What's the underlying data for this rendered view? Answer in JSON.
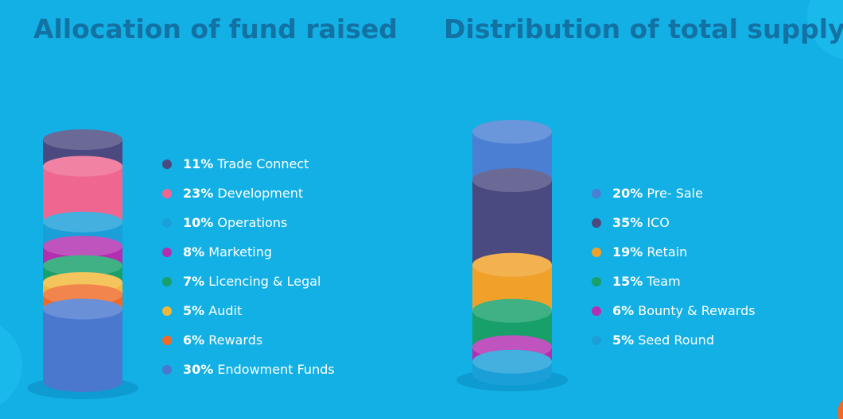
{
  "chart_data": [
    {
      "type": "cylinder",
      "title": "Allocation of fund raised",
      "categories": [
        "Trade Connect",
        "Development",
        "Operations",
        "Marketing",
        "Licencing & Legal",
        "Audit",
        "Rewards",
        "Endowment Funds"
      ],
      "values": [
        11,
        23,
        10,
        8,
        7,
        5,
        6,
        30
      ],
      "value_labels": [
        "11%",
        "23%",
        "10%",
        "8%",
        "7%",
        "5%",
        "6%",
        "30%"
      ],
      "colors": [
        "#4b4a80",
        "#ef6791",
        "#1b9fd8",
        "#b32fb0",
        "#17a06a",
        "#f2b73a",
        "#f06a27",
        "#4a78cf"
      ]
    },
    {
      "type": "cylinder",
      "title": "Distribution of total supply",
      "categories": [
        "Pre- Sale",
        "ICO",
        "Retain",
        "Team",
        "Bounty & Rewards",
        "Seed Round"
      ],
      "values": [
        20,
        35,
        19,
        15,
        6,
        5
      ],
      "value_labels": [
        "20%",
        "35%",
        "19%",
        "15%",
        "6%",
        "5%"
      ],
      "colors": [
        "#4a7fd4",
        "#4b4a80",
        "#f0a12a",
        "#17a06a",
        "#b32fb0",
        "#1b9fd8"
      ]
    }
  ]
}
